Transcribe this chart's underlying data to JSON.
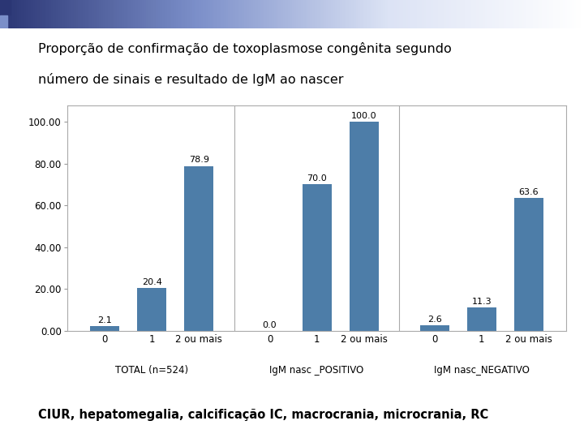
{
  "title_line1": "Proporção de confirmação de toxoplasmose congênita segundo",
  "title_line2": "número de sinais e resultado de IgM ao nascer",
  "subtitle": "CIUR, hepatomegalia, calcificação IC, macrocrania, microcrania, RC",
  "groups": [
    {
      "label": "TOTAL (n=524)",
      "subgroups": [
        "0",
        "1",
        "2 ou mais"
      ],
      "values": [
        2.1,
        20.4,
        78.9
      ]
    },
    {
      "label": "IgM nasc _POSITIVO",
      "subgroups": [
        "0",
        "1",
        "2 ou mais"
      ],
      "values": [
        0.0,
        70.0,
        100.0
      ]
    },
    {
      "label": "IgM nasc_NEGATIVO",
      "subgroups": [
        "0",
        "1",
        "2 ou mais"
      ],
      "values": [
        2.6,
        11.3,
        63.6
      ]
    }
  ],
  "bar_color": "#4d7da8",
  "ylim": [
    0,
    108
  ],
  "yticks": [
    0.0,
    20.0,
    40.0,
    60.0,
    80.0,
    100.0
  ],
  "ytick_labels": [
    "0.00",
    "20.00",
    "40.00",
    "60.00",
    "80.00",
    "100.00"
  ],
  "title_fontsize": 11.5,
  "subtitle_fontsize": 10.5,
  "tick_fontsize": 8.5,
  "group_label_fontsize": 8.5,
  "value_fontsize": 8,
  "background_color": "#ffffff",
  "header_dark_color": "#2b3674",
  "header_mid_color": "#7b8fc9",
  "header_light_color": "#dce3f5"
}
